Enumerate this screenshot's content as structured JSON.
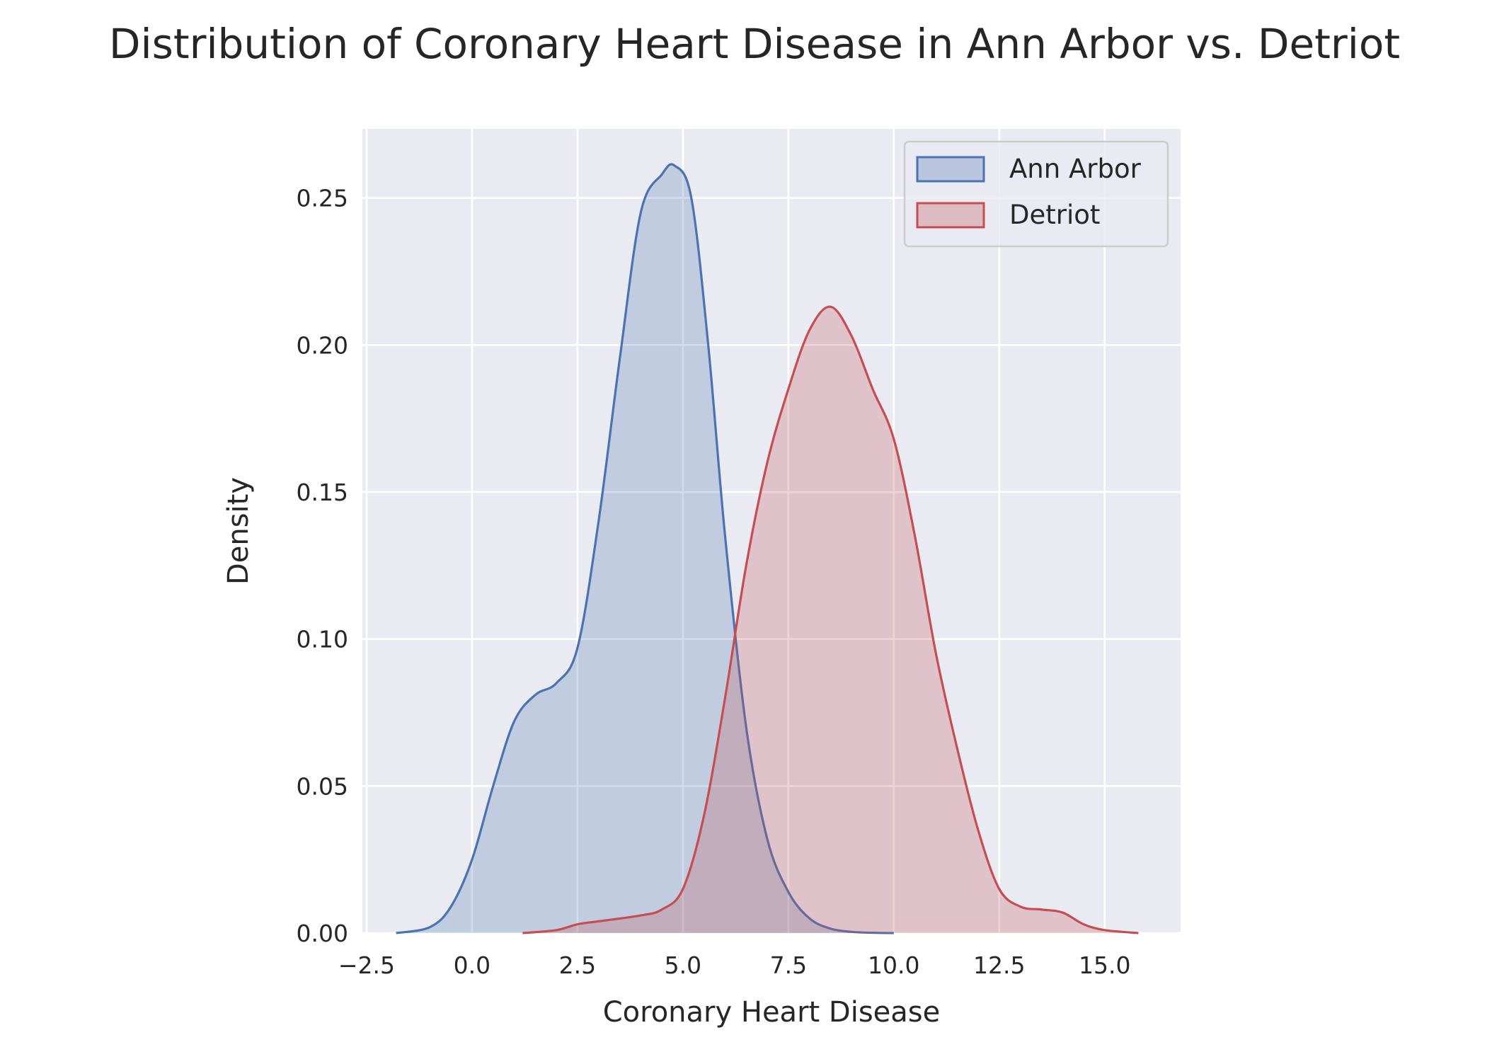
{
  "colors": {
    "background": "#eaeaf2",
    "grid": "#ffffff",
    "ann_arbor": "#4c72b0",
    "detroit": "#c44e52"
  },
  "chart_data": {
    "type": "area",
    "title": "Distribution of Coronary Heart Disease in Ann Arbor vs. Detriot",
    "xlabel": "Coronary Heart Disease",
    "ylabel": "Density",
    "xlim": [
      -2.6,
      16.8
    ],
    "ylim": [
      0,
      0.2735
    ],
    "xticks": [
      -2.5,
      0.0,
      2.5,
      5.0,
      7.5,
      10.0,
      12.5,
      15.0
    ],
    "xtick_labels": [
      "−2.5",
      "0.0",
      "2.5",
      "5.0",
      "7.5",
      "10.0",
      "12.5",
      "15.0"
    ],
    "yticks": [
      0.0,
      0.05,
      0.1,
      0.15,
      0.2,
      0.25
    ],
    "ytick_labels": [
      "0.00",
      "0.05",
      "0.10",
      "0.15",
      "0.20",
      "0.25"
    ],
    "grid": true,
    "legend_position": "top-right",
    "series": [
      {
        "name": "Ann Arbor",
        "color": "#4c72b0",
        "x": [
          -1.8,
          -1.0,
          -0.5,
          0.0,
          0.5,
          1.0,
          1.5,
          2.0,
          2.5,
          3.0,
          3.5,
          4.0,
          4.5,
          4.8,
          5.2,
          5.6,
          6.0,
          6.5,
          7.0,
          7.5,
          8.0,
          8.5,
          9.0,
          9.5,
          10.0
        ],
        "y": [
          0.0,
          0.002,
          0.009,
          0.025,
          0.05,
          0.072,
          0.081,
          0.085,
          0.097,
          0.14,
          0.195,
          0.245,
          0.258,
          0.261,
          0.25,
          0.2,
          0.135,
          0.07,
          0.032,
          0.014,
          0.005,
          0.0015,
          0.0004,
          0.0001,
          0.0
        ]
      },
      {
        "name": "Detriot",
        "color": "#c44e52",
        "x": [
          1.2,
          2.0,
          2.5,
          3.0,
          4.0,
          4.5,
          5.0,
          5.5,
          6.0,
          6.5,
          7.0,
          7.5,
          8.0,
          8.5,
          9.0,
          9.5,
          10.0,
          10.5,
          11.0,
          11.5,
          12.0,
          12.5,
          13.0,
          13.5,
          14.0,
          14.5,
          15.0,
          15.8
        ],
        "y": [
          0.0,
          0.001,
          0.003,
          0.004,
          0.006,
          0.008,
          0.015,
          0.04,
          0.08,
          0.125,
          0.16,
          0.185,
          0.205,
          0.213,
          0.203,
          0.185,
          0.168,
          0.135,
          0.095,
          0.063,
          0.035,
          0.015,
          0.009,
          0.008,
          0.007,
          0.003,
          0.001,
          0.0
        ]
      }
    ]
  }
}
